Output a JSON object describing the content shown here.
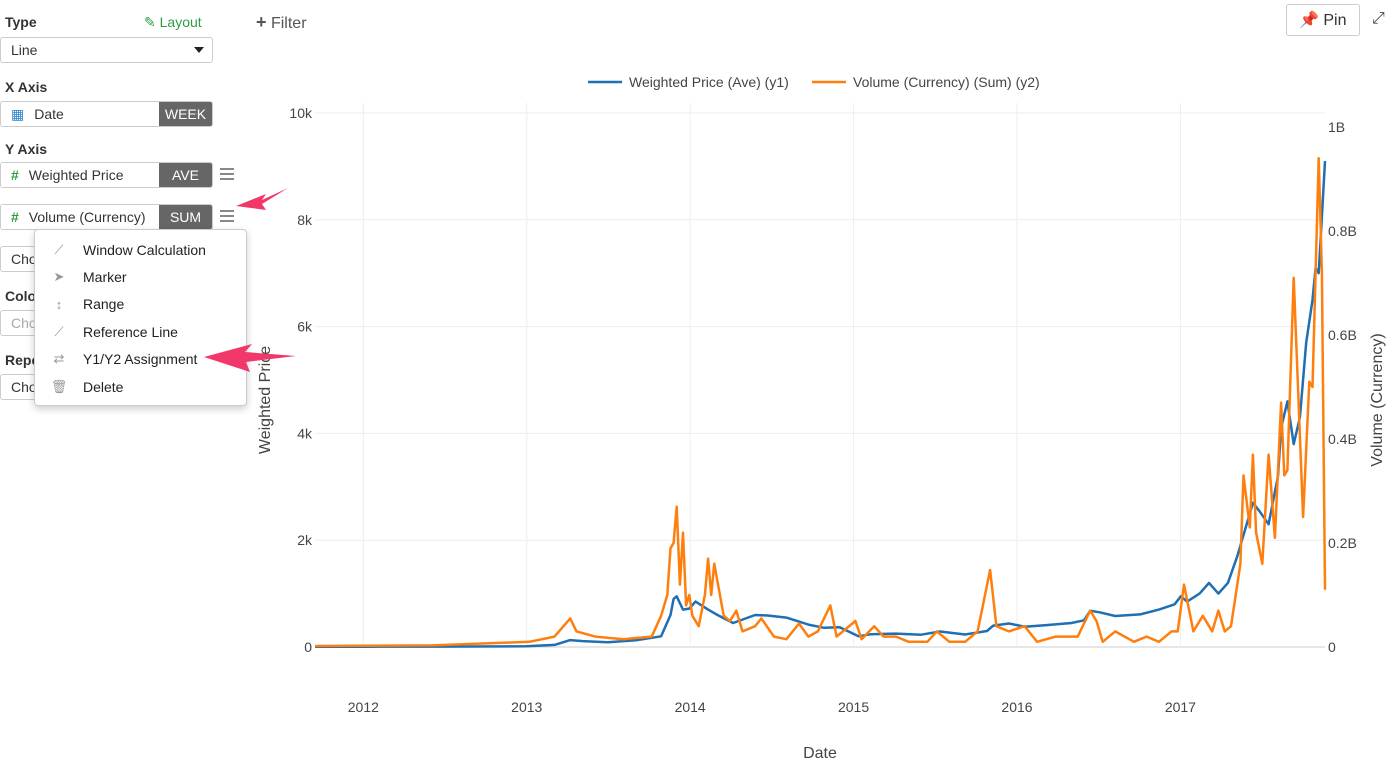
{
  "sidebar": {
    "type_label": "Type",
    "layout_link": "Layout",
    "type_value": "Line",
    "xaxis_label": "X Axis",
    "x_field": "Date",
    "x_agg": "WEEK",
    "yaxis_label": "Y Axis",
    "y_fields": [
      {
        "name": "Weighted Price",
        "agg": "AVE"
      },
      {
        "name": "Volume (Currency)",
        "agg": "SUM"
      }
    ],
    "choose_1": "Cho",
    "color_label": "Colo",
    "choose_2": "Cho",
    "repeat_label": "Repe",
    "choose_3": "Cho"
  },
  "menu": {
    "items": [
      {
        "label": "Window Calculation",
        "icon": "line-chart-icon"
      },
      {
        "label": "Marker",
        "icon": "cursor-icon"
      },
      {
        "label": "Range",
        "icon": "vertical-arrows-icon"
      },
      {
        "label": "Reference Line",
        "icon": "line-chart-icon"
      },
      {
        "label": "Y1/Y2 Assignment",
        "icon": "swap-icon"
      },
      {
        "label": "Delete",
        "icon": "trash-icon"
      }
    ]
  },
  "toolbar": {
    "filter": "Filter",
    "pin": "Pin"
  },
  "colors": {
    "y1": "#1f6fb4",
    "y2": "#ff7f0e",
    "accent": "#2e9c44",
    "arrow": "#f2386b"
  },
  "chart_data": {
    "type": "line",
    "xlabel": "Date",
    "ylabel": "Weighted Price",
    "y2label": "Volume (Currency)",
    "xticks": [
      "2012",
      "2013",
      "2014",
      "2015",
      "2016",
      "2017"
    ],
    "xlim": [
      "2011-09-15",
      "2017-11-20"
    ],
    "yticks": [
      "0",
      "2k",
      "4k",
      "6k",
      "8k",
      "10k"
    ],
    "ylim": [
      0,
      10000
    ],
    "y2ticks": [
      "0",
      "0.2B",
      "0.4B",
      "0.6B",
      "0.8B",
      "1B"
    ],
    "y2lim": [
      0,
      1
    ],
    "grid": true,
    "legend_placement": "top",
    "series": [
      {
        "name": "Weighted Price (Ave) (y1)",
        "axis": "y1",
        "points": [
          [
            "2011-09-15",
            5
          ],
          [
            "2012-01-02",
            6
          ],
          [
            "2012-06-04",
            7
          ],
          [
            "2012-12-31",
            13
          ],
          [
            "2013-03-04",
            40
          ],
          [
            "2013-04-08",
            130
          ],
          [
            "2013-05-06",
            110
          ],
          [
            "2013-07-01",
            90
          ],
          [
            "2013-09-02",
            125
          ],
          [
            "2013-10-28",
            200
          ],
          [
            "2013-11-18",
            600
          ],
          [
            "2013-11-25",
            900
          ],
          [
            "2013-12-02",
            950
          ],
          [
            "2013-12-16",
            700
          ],
          [
            "2013-12-30",
            720
          ],
          [
            "2014-01-13",
            850
          ],
          [
            "2014-02-10",
            700
          ],
          [
            "2014-03-03",
            600
          ],
          [
            "2014-04-07",
            450
          ],
          [
            "2014-05-26",
            600
          ],
          [
            "2014-06-23",
            590
          ],
          [
            "2014-08-04",
            550
          ],
          [
            "2014-09-22",
            420
          ],
          [
            "2014-10-27",
            360
          ],
          [
            "2014-12-01",
            370
          ],
          [
            "2015-01-12",
            200
          ],
          [
            "2015-02-09",
            240
          ],
          [
            "2015-04-06",
            250
          ],
          [
            "2015-06-01",
            230
          ],
          [
            "2015-07-13",
            290
          ],
          [
            "2015-09-07",
            235
          ],
          [
            "2015-10-26",
            300
          ],
          [
            "2015-11-09",
            400
          ],
          [
            "2015-12-14",
            440
          ],
          [
            "2016-01-18",
            380
          ],
          [
            "2016-03-07",
            410
          ],
          [
            "2016-05-02",
            450
          ],
          [
            "2016-05-30",
            500
          ],
          [
            "2016-06-13",
            680
          ],
          [
            "2016-07-04",
            650
          ],
          [
            "2016-08-08",
            580
          ],
          [
            "2016-10-03",
            610
          ],
          [
            "2016-11-14",
            700
          ],
          [
            "2016-12-19",
            800
          ],
          [
            "2017-01-02",
            950
          ],
          [
            "2017-01-16",
            850
          ],
          [
            "2017-02-13",
            1000
          ],
          [
            "2017-03-06",
            1200
          ],
          [
            "2017-03-27",
            1000
          ],
          [
            "2017-04-17",
            1200
          ],
          [
            "2017-05-08",
            1700
          ],
          [
            "2017-05-29",
            2300
          ],
          [
            "2017-06-12",
            2700
          ],
          [
            "2017-06-26",
            2550
          ],
          [
            "2017-07-17",
            2300
          ],
          [
            "2017-08-07",
            3200
          ],
          [
            "2017-08-14",
            4100
          ],
          [
            "2017-08-28",
            4600
          ],
          [
            "2017-09-11",
            3800
          ],
          [
            "2017-09-25",
            4300
          ],
          [
            "2017-10-09",
            5700
          ],
          [
            "2017-10-23",
            6500
          ],
          [
            "2017-10-30",
            7100
          ],
          [
            "2017-11-06",
            7000
          ],
          [
            "2017-11-20",
            9100
          ]
        ]
      },
      {
        "name": "Volume (Currency) (Sum) (y2)",
        "axis": "y2",
        "points": [
          [
            "2011-09-15",
            0.002
          ],
          [
            "2012-06-04",
            0.003
          ],
          [
            "2013-01-07",
            0.01
          ],
          [
            "2013-03-04",
            0.02
          ],
          [
            "2013-04-08",
            0.055
          ],
          [
            "2013-04-22",
            0.03
          ],
          [
            "2013-06-03",
            0.02
          ],
          [
            "2013-08-05",
            0.015
          ],
          [
            "2013-10-07",
            0.02
          ],
          [
            "2013-10-28",
            0.06
          ],
          [
            "2013-11-11",
            0.1
          ],
          [
            "2013-11-18",
            0.19
          ],
          [
            "2013-11-25",
            0.2
          ],
          [
            "2013-12-02",
            0.27
          ],
          [
            "2013-12-09",
            0.12
          ],
          [
            "2013-12-16",
            0.22
          ],
          [
            "2013-12-23",
            0.08
          ],
          [
            "2013-12-30",
            0.1
          ],
          [
            "2014-01-06",
            0.06
          ],
          [
            "2014-01-20",
            0.04
          ],
          [
            "2014-02-03",
            0.1
          ],
          [
            "2014-02-10",
            0.17
          ],
          [
            "2014-02-17",
            0.1
          ],
          [
            "2014-02-24",
            0.16
          ],
          [
            "2014-03-17",
            0.06
          ],
          [
            "2014-03-31",
            0.05
          ],
          [
            "2014-04-14",
            0.07
          ],
          [
            "2014-04-28",
            0.03
          ],
          [
            "2014-05-26",
            0.04
          ],
          [
            "2014-06-09",
            0.055
          ],
          [
            "2014-07-07",
            0.02
          ],
          [
            "2014-08-04",
            0.015
          ],
          [
            "2014-09-01",
            0.045
          ],
          [
            "2014-09-22",
            0.02
          ],
          [
            "2014-10-13",
            0.03
          ],
          [
            "2014-11-10",
            0.08
          ],
          [
            "2014-11-24",
            0.02
          ],
          [
            "2015-01-05",
            0.05
          ],
          [
            "2015-01-19",
            0.015
          ],
          [
            "2015-02-16",
            0.04
          ],
          [
            "2015-03-09",
            0.02
          ],
          [
            "2015-04-06",
            0.02
          ],
          [
            "2015-05-04",
            0.01
          ],
          [
            "2015-06-15",
            0.01
          ],
          [
            "2015-07-06",
            0.03
          ],
          [
            "2015-08-03",
            0.01
          ],
          [
            "2015-09-07",
            0.01
          ],
          [
            "2015-10-05",
            0.03
          ],
          [
            "2015-11-02",
            0.148
          ],
          [
            "2015-11-16",
            0.04
          ],
          [
            "2015-12-14",
            0.03
          ],
          [
            "2016-01-18",
            0.04
          ],
          [
            "2016-02-15",
            0.01
          ],
          [
            "2016-03-28",
            0.02
          ],
          [
            "2016-05-16",
            0.02
          ],
          [
            "2016-06-13",
            0.07
          ],
          [
            "2016-06-27",
            0.05
          ],
          [
            "2016-07-11",
            0.01
          ],
          [
            "2016-08-08",
            0.03
          ],
          [
            "2016-09-19",
            0.01
          ],
          [
            "2016-10-17",
            0.02
          ],
          [
            "2016-11-14",
            0.01
          ],
          [
            "2016-12-12",
            0.03
          ],
          [
            "2016-12-26",
            0.03
          ],
          [
            "2017-01-09",
            0.12
          ],
          [
            "2017-01-30",
            0.03
          ],
          [
            "2017-02-20",
            0.06
          ],
          [
            "2017-03-13",
            0.03
          ],
          [
            "2017-03-27",
            0.07
          ],
          [
            "2017-04-10",
            0.03
          ],
          [
            "2017-04-24",
            0.04
          ],
          [
            "2017-05-15",
            0.16
          ],
          [
            "2017-05-22",
            0.33
          ],
          [
            "2017-06-05",
            0.23
          ],
          [
            "2017-06-12",
            0.37
          ],
          [
            "2017-06-19",
            0.22
          ],
          [
            "2017-07-03",
            0.16
          ],
          [
            "2017-07-17",
            0.37
          ],
          [
            "2017-07-31",
            0.21
          ],
          [
            "2017-08-14",
            0.47
          ],
          [
            "2017-08-21",
            0.33
          ],
          [
            "2017-08-28",
            0.34
          ],
          [
            "2017-09-11",
            0.71
          ],
          [
            "2017-10-02",
            0.25
          ],
          [
            "2017-10-16",
            0.51
          ],
          [
            "2017-10-23",
            0.5
          ],
          [
            "2017-11-06",
            0.94
          ],
          [
            "2017-11-13",
            0.72
          ],
          [
            "2017-11-20",
            0.11
          ]
        ]
      }
    ]
  }
}
